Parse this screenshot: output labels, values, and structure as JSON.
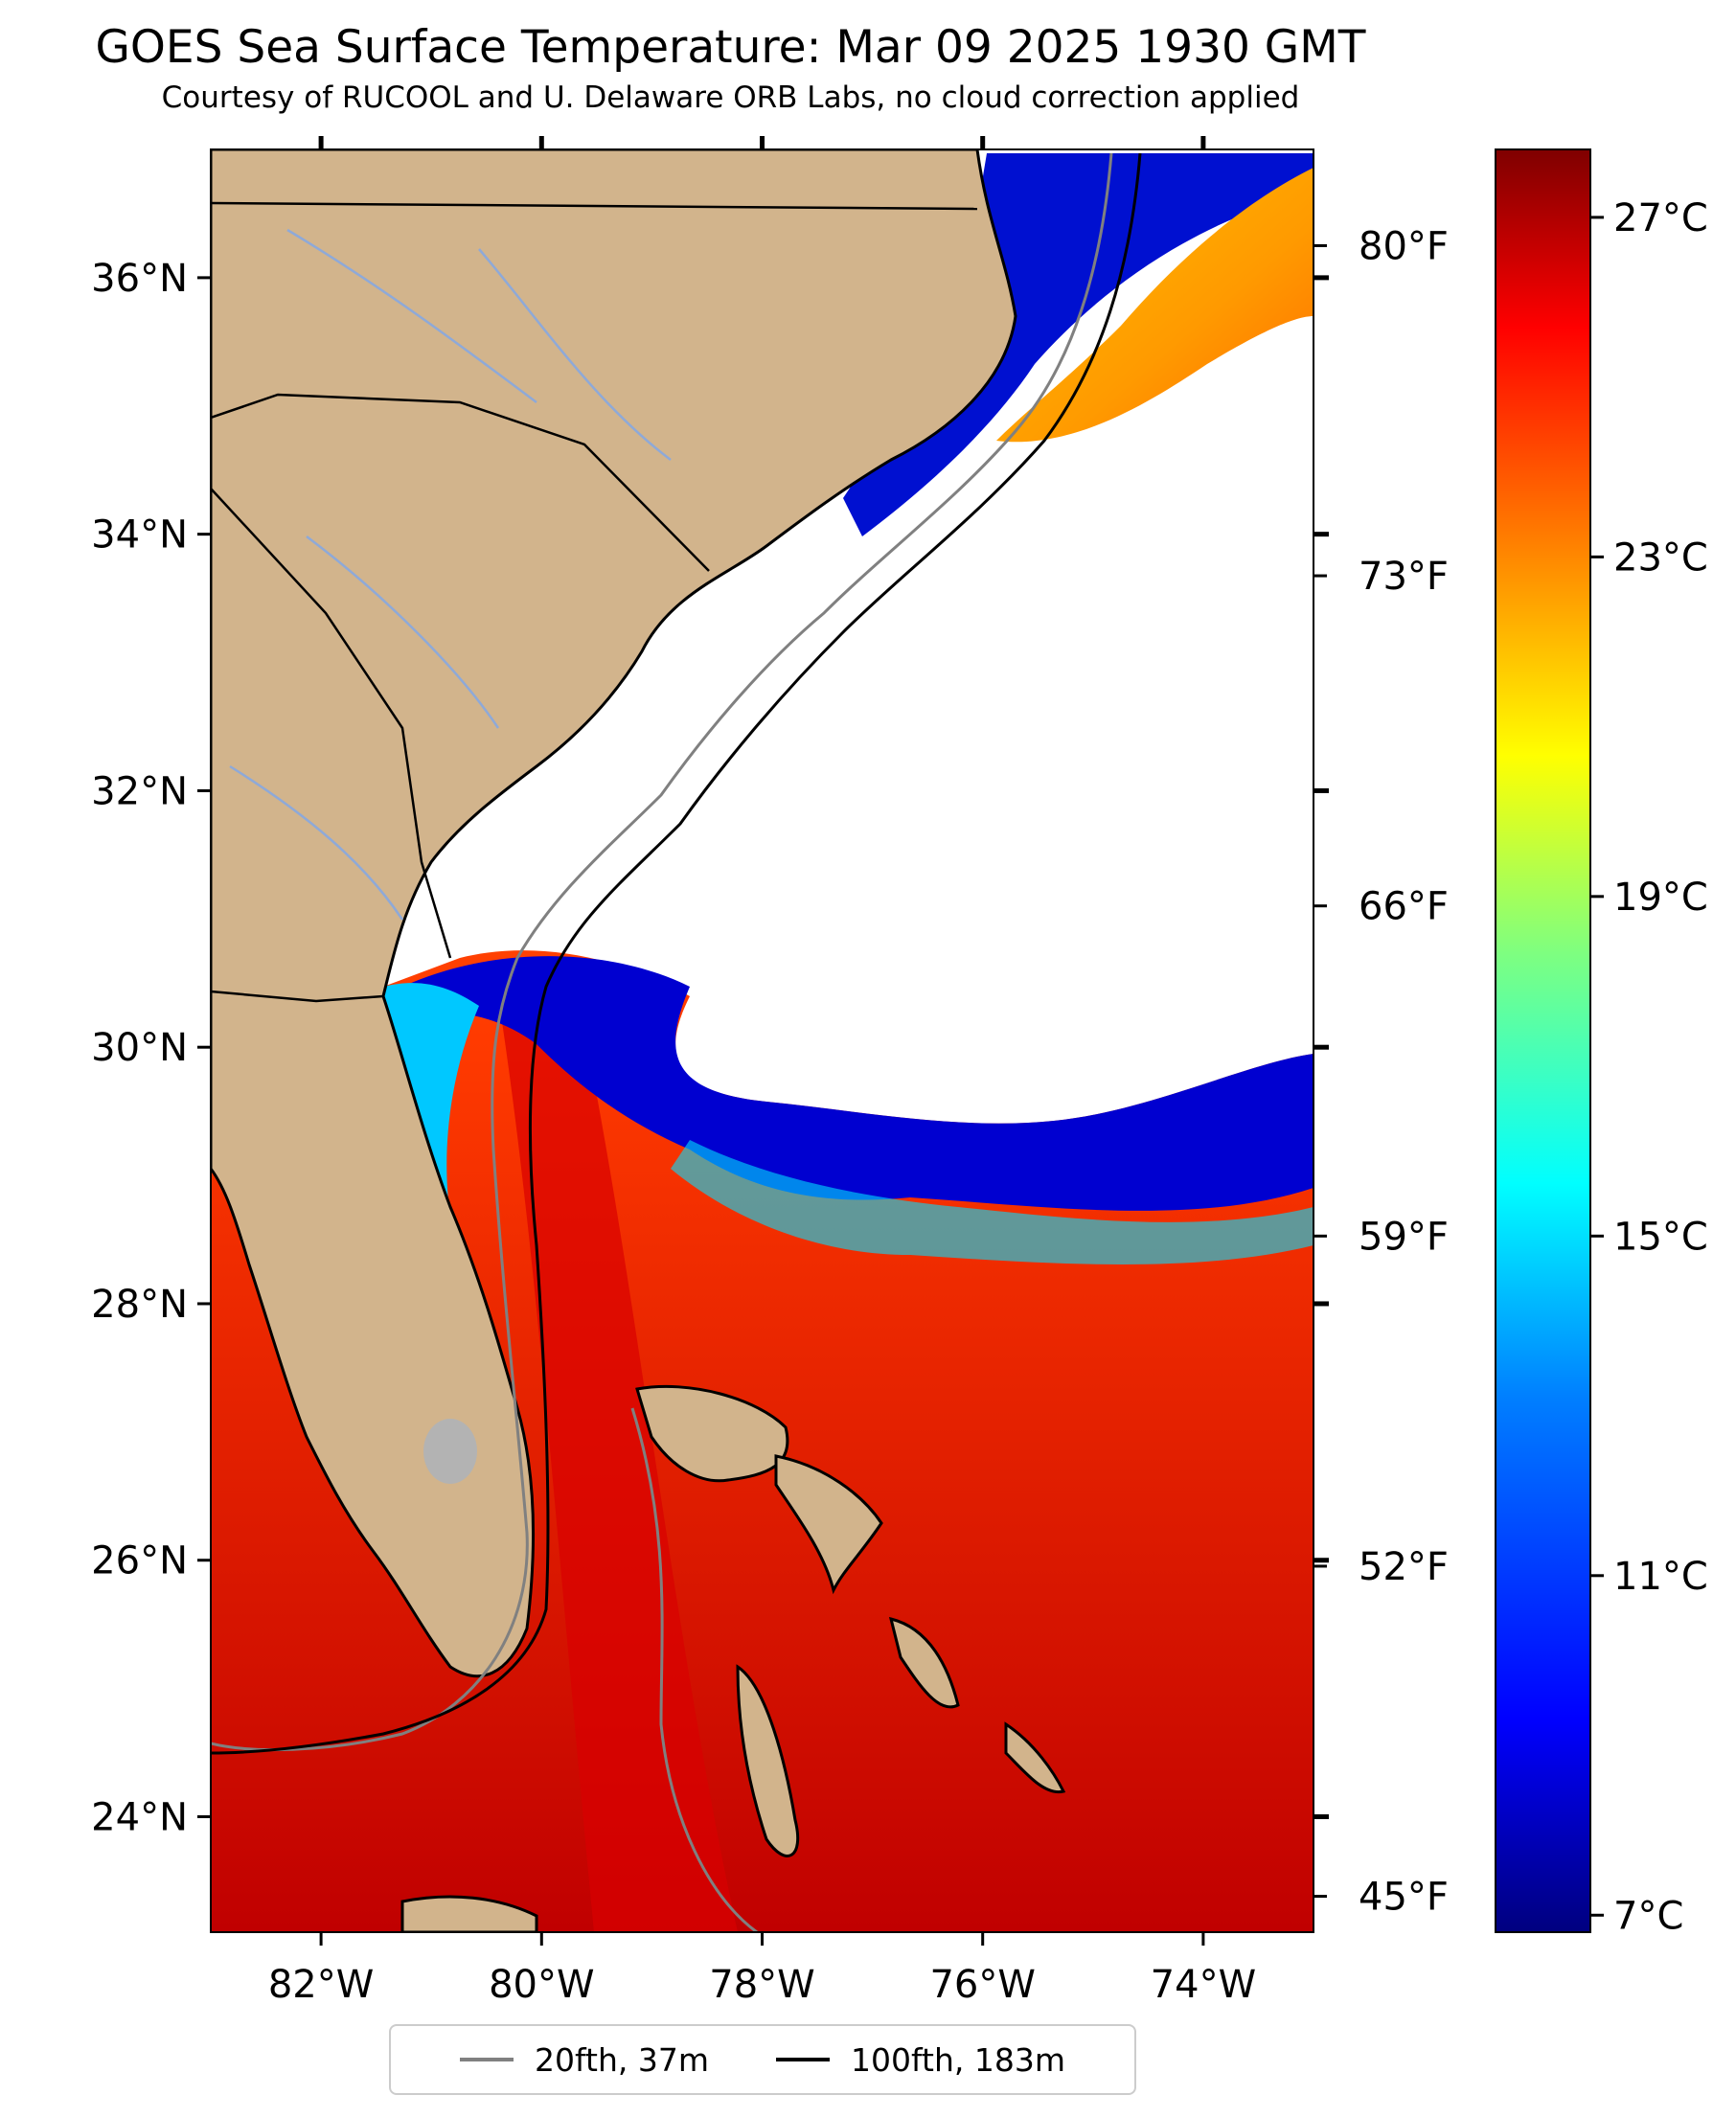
{
  "header": {
    "title": "GOES Sea Surface Temperature: Mar 09 2025 1930 GMT",
    "subtitle": "Courtesy of RUCOOL and U. Delaware ORB Labs, no cloud correction applied"
  },
  "map": {
    "lon_range": [
      -83,
      -73
    ],
    "lat_range": [
      23.1,
      37.0
    ],
    "lon_ticks": [
      {
        "value": -82,
        "label": "82°W"
      },
      {
        "value": -80,
        "label": "80°W"
      },
      {
        "value": -78,
        "label": "78°W"
      },
      {
        "value": -76,
        "label": "76°W"
      },
      {
        "value": -74,
        "label": "74°W"
      }
    ],
    "lat_ticks": [
      {
        "value": 24,
        "label": "24°N"
      },
      {
        "value": 26,
        "label": "26°N"
      },
      {
        "value": 28,
        "label": "28°N"
      },
      {
        "value": 30,
        "label": "30°N"
      },
      {
        "value": 32,
        "label": "32°N"
      },
      {
        "value": 34,
        "label": "34°N"
      },
      {
        "value": 36,
        "label": "36°N"
      }
    ],
    "fahrenheit_ticks": [
      {
        "value": 80,
        "label": "80°F"
      },
      {
        "value": 73,
        "label": "73°F"
      },
      {
        "value": 66,
        "label": "66°F"
      },
      {
        "value": 59,
        "label": "59°F"
      },
      {
        "value": 52,
        "label": "52°F"
      },
      {
        "value": 45,
        "label": "45°F"
      }
    ],
    "colors": {
      "land": "#d2b48c",
      "cloud": "#ffffff",
      "border": "#000000",
      "river": "#8ea9d8",
      "isobath20": "#808080",
      "isobath100": "#000000"
    }
  },
  "colorbar": {
    "range_c": [
      6.8,
      27.8
    ],
    "ticks": [
      {
        "value": 27,
        "label": "27°C"
      },
      {
        "value": 23,
        "label": "23°C"
      },
      {
        "value": 19,
        "label": "19°C"
      },
      {
        "value": 15,
        "label": "15°C"
      },
      {
        "value": 11,
        "label": "11°C"
      },
      {
        "value": 7,
        "label": "7°C"
      }
    ],
    "colormap": [
      "#00007f",
      "#0000ff",
      "#007fff",
      "#00ffff",
      "#7fff7f",
      "#ffff00",
      "#ff7f00",
      "#ff0000",
      "#7f0000"
    ]
  },
  "legend": {
    "items": [
      {
        "label": "20fth, 37m",
        "color": "#808080"
      },
      {
        "label": "100fth, 183m",
        "color": "#000000"
      }
    ]
  }
}
